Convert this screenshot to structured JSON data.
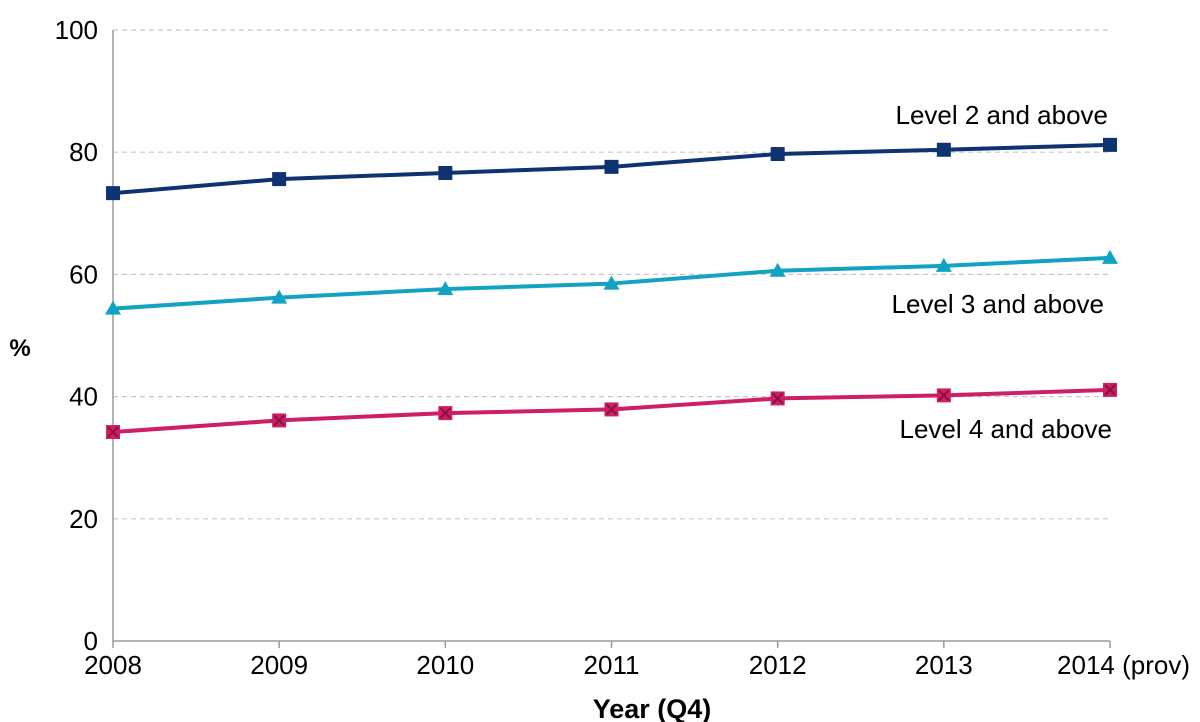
{
  "chart_data": {
    "type": "line",
    "title": "",
    "xlabel": "Year (Q4)",
    "ylabel": "%",
    "categories": [
      "2008",
      "2009",
      "2010",
      "2011",
      "2012",
      "2013",
      "2014 (prov)"
    ],
    "ylim": [
      0,
      100
    ],
    "yticks": [
      "0",
      "20",
      "40",
      "60",
      "80",
      "100"
    ],
    "grid": true,
    "series": [
      {
        "name": "Level 2 and above",
        "values": [
          73.3,
          75.6,
          76.6,
          77.6,
          79.7,
          80.4,
          81.2
        ],
        "color": "#0f3270",
        "marker": "square"
      },
      {
        "name": "Level 3 and above",
        "values": [
          54.4,
          56.2,
          57.6,
          58.5,
          60.6,
          61.4,
          62.7
        ],
        "color": "#12a2c2",
        "marker": "triangle"
      },
      {
        "name": "Level 4 and above",
        "values": [
          34.2,
          36.1,
          37.3,
          37.9,
          39.7,
          40.2,
          41.1
        ],
        "color": "#cc1f66",
        "marker": "square-x"
      }
    ]
  }
}
